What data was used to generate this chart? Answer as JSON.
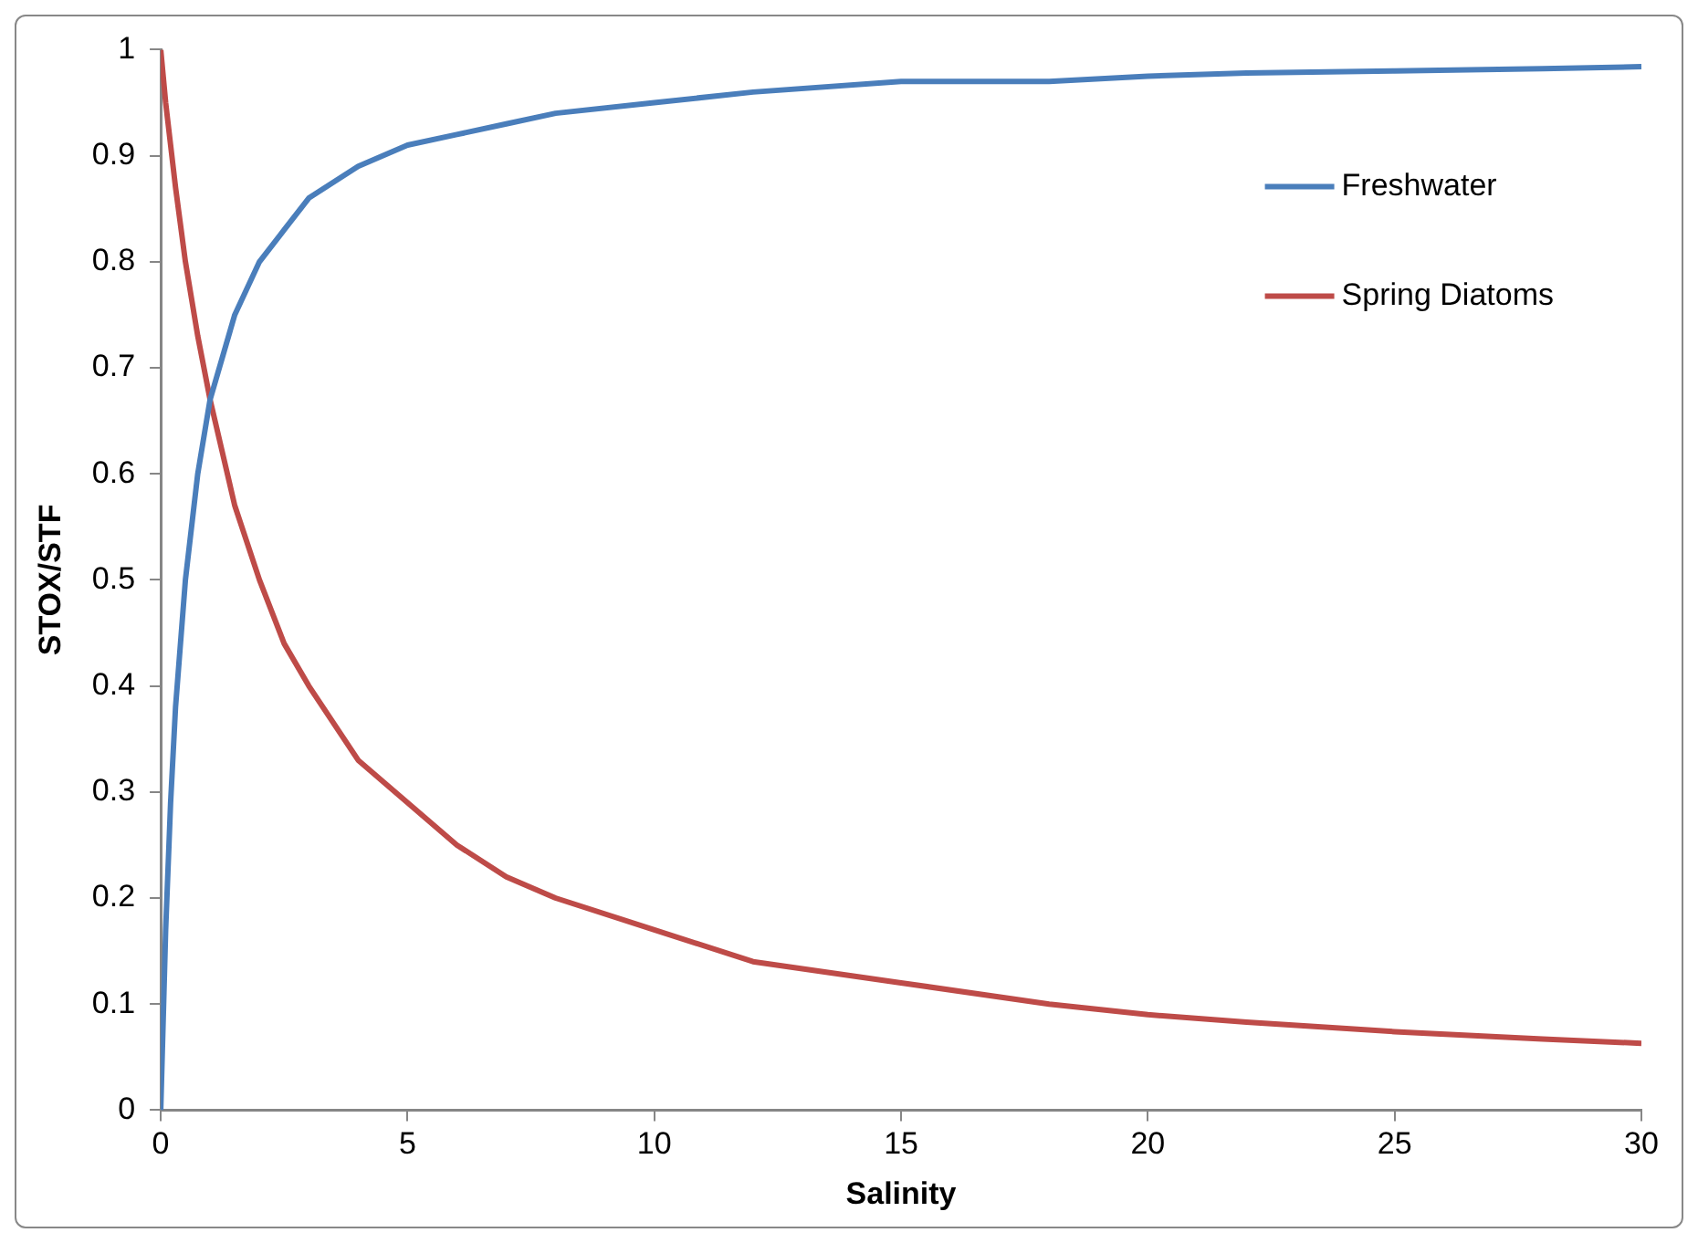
{
  "chart_data": {
    "type": "line",
    "xlabel": "Salinity",
    "ylabel": "STOX/STF",
    "x": [
      0,
      0.1,
      0.2,
      0.3,
      0.5,
      0.75,
      1,
      1.5,
      2,
      2.5,
      3,
      4,
      5,
      6,
      7,
      8,
      10,
      12,
      15,
      18,
      20,
      22,
      25,
      28,
      30
    ],
    "series": [
      {
        "name": "Freshwater",
        "color": "#4a7ebb",
        "values": [
          0,
          0.17,
          0.29,
          0.38,
          0.5,
          0.6,
          0.67,
          0.75,
          0.8,
          0.83,
          0.86,
          0.89,
          0.91,
          0.92,
          0.93,
          0.94,
          0.95,
          0.96,
          0.97,
          0.97,
          0.975,
          0.978,
          0.98,
          0.982,
          0.984
        ]
      },
      {
        "name": "Spring Diatoms",
        "color": "#be4b48",
        "values": [
          1,
          0.95,
          0.91,
          0.87,
          0.8,
          0.73,
          0.67,
          0.57,
          0.5,
          0.44,
          0.4,
          0.33,
          0.29,
          0.25,
          0.22,
          0.2,
          0.17,
          0.14,
          0.12,
          0.1,
          0.09,
          0.083,
          0.074,
          0.067,
          0.063
        ]
      }
    ],
    "xlim": [
      0,
      30
    ],
    "xticks": [
      0,
      5,
      10,
      15,
      20,
      25,
      30
    ],
    "ylim": [
      0,
      1
    ],
    "yticks": [
      0,
      0.1,
      0.2,
      0.3,
      0.4,
      0.5,
      0.6,
      0.7,
      0.8,
      0.9,
      1
    ],
    "grid": false,
    "legend": "top right",
    "marker": "none",
    "line_style": "solid"
  }
}
